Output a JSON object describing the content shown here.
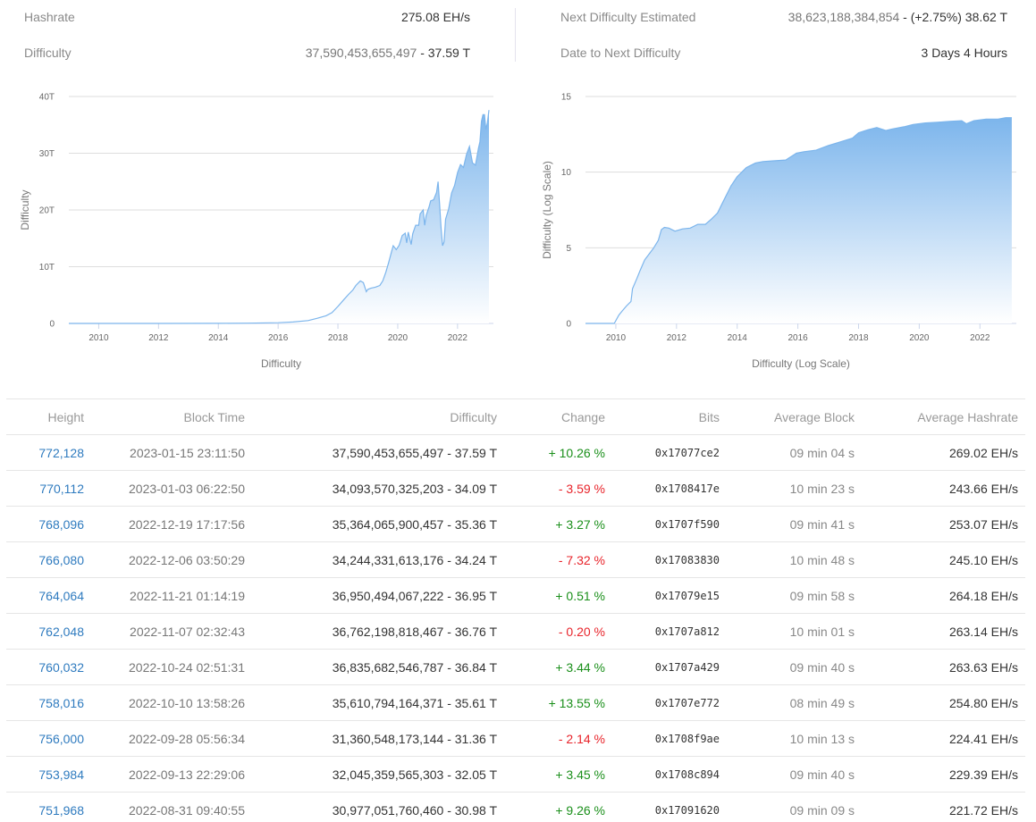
{
  "stats": {
    "left": [
      {
        "label": "Hashrate",
        "value_main": "275.08 EH/s",
        "value_muted": ""
      },
      {
        "label": "Difficulty",
        "value_muted": "37,590,453,655,497",
        "value_main": " - 37.59 T"
      }
    ],
    "right": [
      {
        "label": "Next Difficulty Estimated",
        "value_muted": "38,623,188,384,854",
        "value_main": " - (+2.75%) 38.62 T"
      },
      {
        "label": "Date to Next Difficulty",
        "value_main": "3 Days 4 Hours",
        "value_muted": ""
      }
    ]
  },
  "colors": {
    "line": "#7cb5ec",
    "area_top": "#7cb5ec",
    "area_bottom": "#ffffff",
    "grid": "#dddddd",
    "link": "#2f7bbf",
    "positive": "#1a8f1a",
    "negative": "#e8242b"
  },
  "chart_data": [
    {
      "type": "area",
      "title": "",
      "xlabel": "Difficulty",
      "ylabel": "Difficulty",
      "x_ticks": [
        "2010",
        "2012",
        "2014",
        "2016",
        "2018",
        "2020",
        "2022"
      ],
      "y_ticks": [
        "0",
        "10T",
        "20T",
        "30T",
        "40T"
      ],
      "ylim": [
        0,
        40
      ],
      "y_unit": "T",
      "grid": true,
      "legend": "none",
      "x": [
        2009.0,
        2010.0,
        2012.0,
        2014.0,
        2015.0,
        2016.0,
        2016.5,
        2017.0,
        2017.3,
        2017.6,
        2017.8,
        2018.0,
        2018.2,
        2018.35,
        2018.5,
        2018.6,
        2018.75,
        2018.85,
        2018.95,
        2019.0,
        2019.1,
        2019.25,
        2019.4,
        2019.5,
        2019.6,
        2019.7,
        2019.8,
        2019.85,
        2019.95,
        2020.05,
        2020.15,
        2020.25,
        2020.3,
        2020.35,
        2020.45,
        2020.5,
        2020.6,
        2020.7,
        2020.75,
        2020.85,
        2020.9,
        2020.95,
        2021.05,
        2021.1,
        2021.2,
        2021.3,
        2021.35,
        2021.4,
        2021.45,
        2021.5,
        2021.55,
        2021.6,
        2021.7,
        2021.8,
        2021.9,
        2022.0,
        2022.1,
        2022.2,
        2022.3,
        2022.4,
        2022.5,
        2022.6,
        2022.7,
        2022.75,
        2022.8,
        2022.85,
        2022.9,
        2022.95,
        2023.0,
        2023.05
      ],
      "values": [
        0.0,
        0.0,
        0.0,
        0.02,
        0.05,
        0.12,
        0.25,
        0.5,
        0.9,
        1.35,
        1.9,
        3.0,
        4.2,
        5.1,
        5.9,
        6.7,
        7.5,
        7.2,
        5.6,
        6.0,
        6.2,
        6.4,
        6.7,
        7.5,
        9.0,
        10.8,
        12.8,
        13.7,
        13.0,
        13.8,
        15.5,
        15.9,
        14.2,
        16.1,
        13.9,
        15.8,
        17.3,
        17.3,
        19.3,
        20.0,
        17.3,
        19.0,
        20.6,
        21.6,
        21.8,
        23.1,
        25.0,
        21.0,
        16.7,
        13.7,
        14.4,
        18.4,
        20.1,
        23.0,
        24.3,
        26.6,
        28.0,
        27.5,
        29.8,
        31.2,
        28.3,
        27.9,
        30.9,
        32.0,
        35.6,
        36.8,
        36.8,
        34.2,
        35.4,
        37.6
      ]
    },
    {
      "type": "area",
      "title": "",
      "xlabel": "Difficulty (Log Scale)",
      "ylabel": "Difficulty (Log Scale)",
      "x_ticks": [
        "2010",
        "2012",
        "2014",
        "2016",
        "2018",
        "2020",
        "2022"
      ],
      "y_ticks": [
        "0",
        "5",
        "10",
        "15"
      ],
      "ylim": [
        0,
        15
      ],
      "grid": true,
      "legend": "none",
      "x": [
        2009.0,
        2009.95,
        2010.1,
        2010.2,
        2010.35,
        2010.5,
        2010.55,
        2010.7,
        2010.8,
        2010.95,
        2011.1,
        2011.25,
        2011.4,
        2011.5,
        2011.6,
        2011.75,
        2011.95,
        2012.2,
        2012.45,
        2012.7,
        2012.95,
        2013.15,
        2013.35,
        2013.55,
        2013.8,
        2014.0,
        2014.3,
        2014.6,
        2014.85,
        2015.2,
        2015.6,
        2015.95,
        2016.2,
        2016.6,
        2017.0,
        2017.4,
        2017.8,
        2018.0,
        2018.3,
        2018.6,
        2018.9,
        2019.1,
        2019.5,
        2019.8,
        2020.2,
        2020.6,
        2021.0,
        2021.4,
        2021.55,
        2021.8,
        2022.2,
        2022.6,
        2022.85,
        2023.05
      ],
      "values": [
        0.0,
        0.0,
        0.55,
        0.8,
        1.15,
        1.45,
        2.3,
        3.0,
        3.5,
        4.2,
        4.6,
        5.0,
        5.5,
        6.2,
        6.35,
        6.3,
        6.1,
        6.25,
        6.3,
        6.55,
        6.55,
        6.9,
        7.3,
        8.1,
        9.1,
        9.7,
        10.3,
        10.6,
        10.7,
        10.75,
        10.8,
        11.25,
        11.35,
        11.45,
        11.75,
        12.0,
        12.25,
        12.6,
        12.8,
        12.95,
        12.75,
        12.85,
        13.0,
        13.15,
        13.25,
        13.3,
        13.35,
        13.4,
        13.2,
        13.4,
        13.5,
        13.5,
        13.6,
        13.6
      ]
    }
  ],
  "charts": {
    "left": {
      "y_labels": [
        "40T",
        "30T",
        "20T",
        "10T",
        "0"
      ],
      "x_labels": [
        "2010",
        "2012",
        "2014",
        "2016",
        "2018",
        "2020",
        "2022"
      ],
      "y_title": "Difficulty",
      "x_title": "Difficulty"
    },
    "right": {
      "y_labels": [
        "15",
        "10",
        "5",
        "0"
      ],
      "x_labels": [
        "2010",
        "2012",
        "2014",
        "2016",
        "2018",
        "2020",
        "2022"
      ],
      "y_title": "Difficulty (Log Scale)",
      "x_title": "Difficulty (Log Scale)"
    }
  },
  "table": {
    "headers": [
      "Height",
      "Block Time",
      "Difficulty",
      "Change",
      "Bits",
      "Average Block",
      "Average Hashrate"
    ],
    "rows": [
      {
        "height": "772,128",
        "time": "2023-01-15 23:11:50",
        "difficulty": "37,590,453,655,497 - 37.59 T",
        "change": "+ 10.26 %",
        "dir": "pos",
        "bits": "0x17077ce2",
        "avg_block": "09 min 04 s",
        "avg_hashrate": "269.02 EH/s"
      },
      {
        "height": "770,112",
        "time": "2023-01-03 06:22:50",
        "difficulty": "34,093,570,325,203 - 34.09 T",
        "change": "- 3.59 %",
        "dir": "neg",
        "bits": "0x1708417e",
        "avg_block": "10 min 23 s",
        "avg_hashrate": "243.66 EH/s"
      },
      {
        "height": "768,096",
        "time": "2022-12-19 17:17:56",
        "difficulty": "35,364,065,900,457 - 35.36 T",
        "change": "+ 3.27 %",
        "dir": "pos",
        "bits": "0x1707f590",
        "avg_block": "09 min 41 s",
        "avg_hashrate": "253.07 EH/s"
      },
      {
        "height": "766,080",
        "time": "2022-12-06 03:50:29",
        "difficulty": "34,244,331,613,176 - 34.24 T",
        "change": "- 7.32 %",
        "dir": "neg",
        "bits": "0x17083830",
        "avg_block": "10 min 48 s",
        "avg_hashrate": "245.10 EH/s"
      },
      {
        "height": "764,064",
        "time": "2022-11-21 01:14:19",
        "difficulty": "36,950,494,067,222 - 36.95 T",
        "change": "+ 0.51 %",
        "dir": "pos",
        "bits": "0x17079e15",
        "avg_block": "09 min 58 s",
        "avg_hashrate": "264.18 EH/s"
      },
      {
        "height": "762,048",
        "time": "2022-11-07 02:32:43",
        "difficulty": "36,762,198,818,467 - 36.76 T",
        "change": "- 0.20 %",
        "dir": "neg",
        "bits": "0x1707a812",
        "avg_block": "10 min 01 s",
        "avg_hashrate": "263.14 EH/s"
      },
      {
        "height": "760,032",
        "time": "2022-10-24 02:51:31",
        "difficulty": "36,835,682,546,787 - 36.84 T",
        "change": "+ 3.44 %",
        "dir": "pos",
        "bits": "0x1707a429",
        "avg_block": "09 min 40 s",
        "avg_hashrate": "263.63 EH/s"
      },
      {
        "height": "758,016",
        "time": "2022-10-10 13:58:26",
        "difficulty": "35,610,794,164,371 - 35.61 T",
        "change": "+ 13.55 %",
        "dir": "pos",
        "bits": "0x1707e772",
        "avg_block": "08 min 49 s",
        "avg_hashrate": "254.80 EH/s"
      },
      {
        "height": "756,000",
        "time": "2022-09-28 05:56:34",
        "difficulty": "31,360,548,173,144 - 31.36 T",
        "change": "- 2.14 %",
        "dir": "neg",
        "bits": "0x1708f9ae",
        "avg_block": "10 min 13 s",
        "avg_hashrate": "224.41 EH/s"
      },
      {
        "height": "753,984",
        "time": "2022-09-13 22:29:06",
        "difficulty": "32,045,359,565,303 - 32.05 T",
        "change": "+ 3.45 %",
        "dir": "pos",
        "bits": "0x1708c894",
        "avg_block": "09 min 40 s",
        "avg_hashrate": "229.39 EH/s"
      },
      {
        "height": "751,968",
        "time": "2022-08-31 09:40:55",
        "difficulty": "30,977,051,760,460 - 30.98 T",
        "change": "+ 9.26 %",
        "dir": "pos",
        "bits": "0x17091620",
        "avg_block": "09 min 09 s",
        "avg_hashrate": "221.72 EH/s"
      }
    ]
  }
}
